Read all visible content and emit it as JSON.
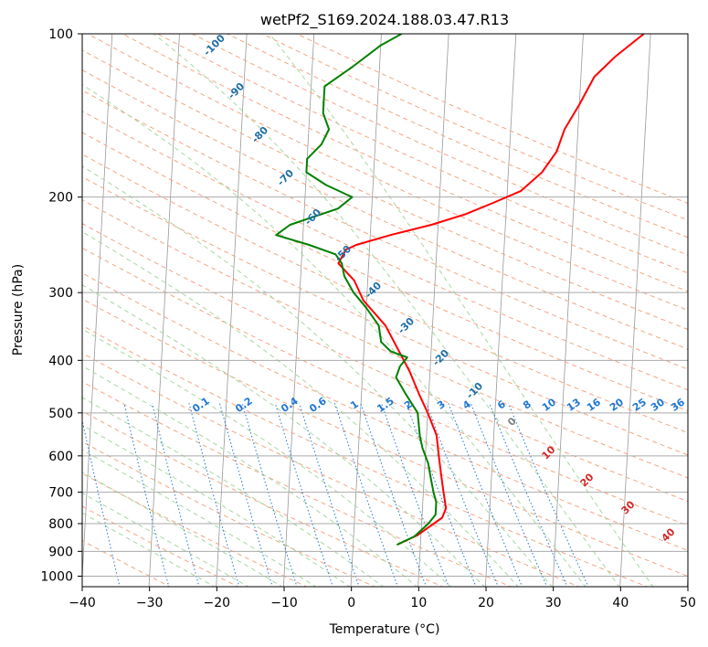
{
  "chart_data": {
    "type": "line",
    "title": "wetPf2_S169.2024.188.03.47.R13",
    "xlabel": "Temperature (°C)",
    "ylabel": "Pressure (hPa)",
    "xlim": [
      -40,
      50
    ],
    "ylim": [
      1050,
      100
    ],
    "y_scale": "log",
    "grid": true,
    "x_ticks": [
      "−40",
      "−30",
      "−20",
      "−10",
      "0",
      "10",
      "20",
      "30",
      "40",
      "50"
    ],
    "y_ticks": [
      {
        "p": 100,
        "label": "100"
      },
      {
        "p": 200,
        "label": "200"
      },
      {
        "p": 300,
        "label": "300"
      },
      {
        "p": 400,
        "label": "400"
      },
      {
        "p": 500,
        "label": "500"
      },
      {
        "p": 600,
        "label": "600"
      },
      {
        "p": 700,
        "label": "700"
      },
      {
        "p": 800,
        "label": "800"
      },
      {
        "p": 900,
        "label": "900"
      },
      {
        "p": 1000,
        "label": "1000"
      }
    ],
    "series": [
      {
        "color": "#ff0000",
        "points": [
          [
            6.5,
            875
          ],
          [
            9.5,
            840
          ],
          [
            13,
            780
          ],
          [
            13.5,
            750
          ],
          [
            13,
            700
          ],
          [
            12.5,
            650
          ],
          [
            12,
            600
          ],
          [
            11.5,
            550
          ],
          [
            10,
            500
          ],
          [
            8.5,
            460
          ],
          [
            7,
            420
          ],
          [
            5.5,
            390
          ],
          [
            3,
            345
          ],
          [
            -0.5,
            310
          ],
          [
            -2,
            285
          ],
          [
            -4.5,
            265
          ],
          [
            -3.5,
            250
          ],
          [
            -2,
            245
          ],
          [
            3,
            235
          ],
          [
            9,
            225
          ],
          [
            14,
            215
          ],
          [
            18,
            205
          ],
          [
            22,
            195
          ],
          [
            25,
            180
          ],
          [
            27,
            165
          ],
          [
            28,
            150
          ],
          [
            30,
            135
          ],
          [
            32,
            120
          ],
          [
            35,
            110
          ],
          [
            39,
            100
          ]
        ]
      },
      {
        "color": "#008000",
        "points": [
          [
            6.5,
            875
          ],
          [
            9,
            845
          ],
          [
            11,
            800
          ],
          [
            12,
            770
          ],
          [
            12,
            730
          ],
          [
            11.5,
            700
          ],
          [
            11,
            660
          ],
          [
            10.5,
            620
          ],
          [
            9.5,
            580
          ],
          [
            9,
            550
          ],
          [
            8.5,
            500
          ],
          [
            6.5,
            460
          ],
          [
            5,
            430
          ],
          [
            5.5,
            410
          ],
          [
            6.5,
            395
          ],
          [
            4,
            385
          ],
          [
            2.5,
            370
          ],
          [
            2,
            345
          ],
          [
            0,
            320
          ],
          [
            -2,
            300
          ],
          [
            -3.5,
            280
          ],
          [
            -4,
            265
          ],
          [
            -5,
            255
          ],
          [
            -9,
            245
          ],
          [
            -14,
            235
          ],
          [
            -12,
            225
          ],
          [
            -5,
            210
          ],
          [
            -3,
            200
          ],
          [
            -7,
            190
          ],
          [
            -10,
            180
          ],
          [
            -10,
            170
          ],
          [
            -8,
            160
          ],
          [
            -7,
            150
          ],
          [
            -8,
            140
          ],
          [
            -8,
            125
          ],
          [
            -4,
            115
          ],
          [
            0,
            105
          ],
          [
            3,
            100
          ]
        ]
      }
    ],
    "dry_adiabat_labels": [
      "-100",
      "-90",
      "-80",
      "-70",
      "-60",
      "-50",
      "-40",
      "-30",
      "-20",
      "-10"
    ],
    "mixing_ratio_labels": [
      "0.1",
      "0.2",
      "0.4",
      "0.6",
      "1",
      "1.5",
      "2",
      "3",
      "4",
      "6",
      "8",
      "10",
      "13",
      "16",
      "20",
      "25",
      "30",
      "36"
    ],
    "moist_adiabat_labels": [
      "0",
      "10",
      "20",
      "30",
      "40"
    ],
    "colors": {
      "temperature": "#ff0000",
      "dewpoint": "#008000",
      "dry_adiabat": "#f4a582",
      "moist_adiabat": "#a6d8a0",
      "mixing_ratio": "#1f77d4",
      "dry_label": "#1f6fa8",
      "moist_label_cold": "#808080",
      "moist_label_warm": "#d62728",
      "isotherm": "#999999",
      "grid": "#aaaaaa"
    }
  }
}
